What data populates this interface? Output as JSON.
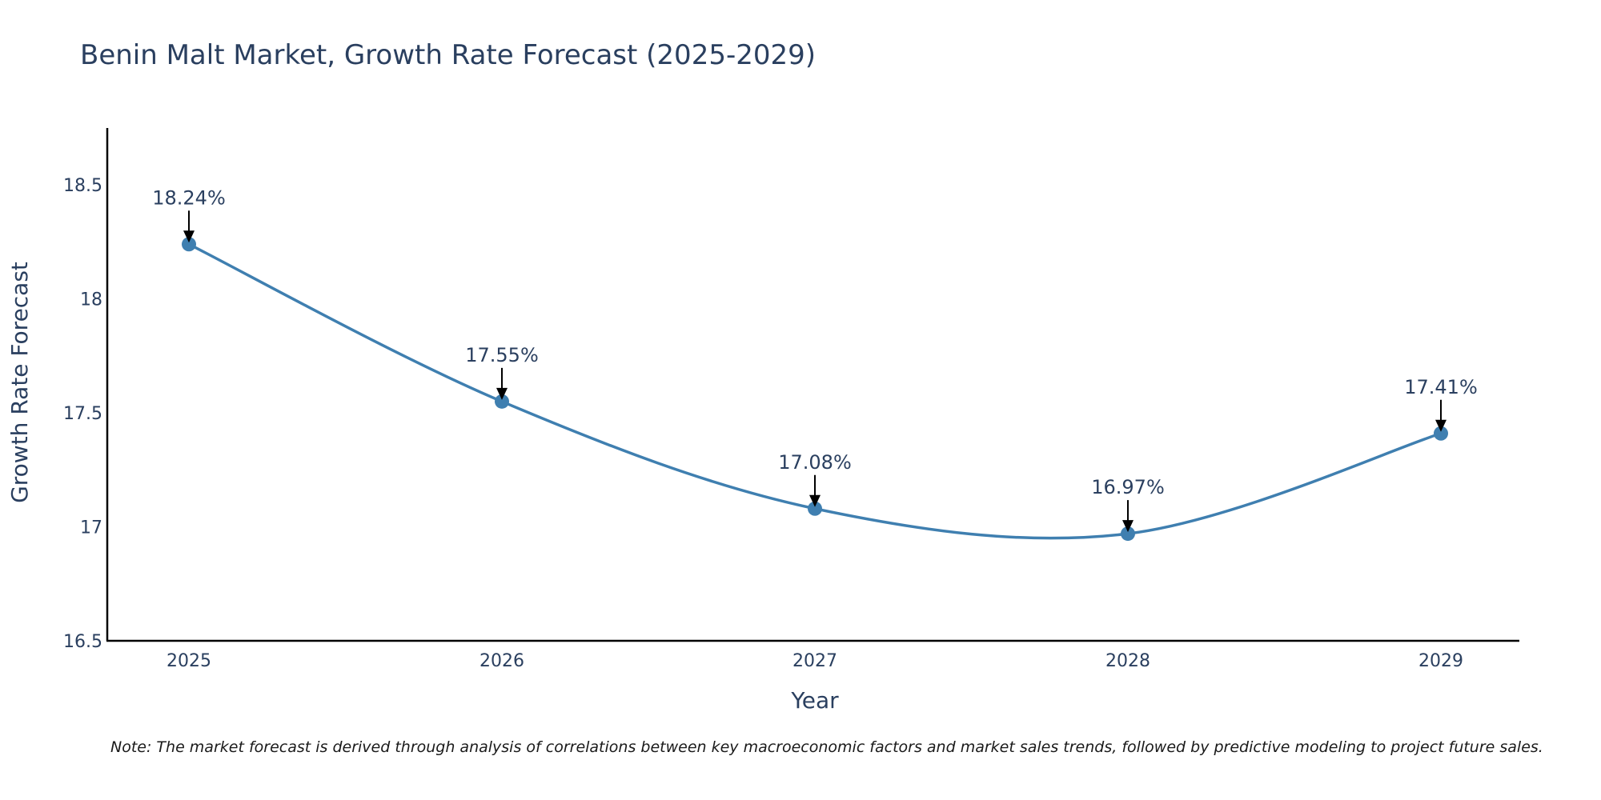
{
  "chart_data": {
    "type": "line",
    "title": "Benin Malt Market, Growth Rate Forecast (2025-2029)",
    "xlabel": "Year",
    "ylabel": "Growth Rate Forecast",
    "categories": [
      "2025",
      "2026",
      "2027",
      "2028",
      "2029"
    ],
    "series": [
      {
        "name": "Growth Rate Forecast",
        "values": [
          18.24,
          17.55,
          17.08,
          16.97,
          17.41
        ],
        "labels": [
          "18.24%",
          "17.55%",
          "17.08%",
          "16.97%",
          "17.41%"
        ],
        "color": "#3f7fb0"
      }
    ],
    "ylim": [
      16.5,
      18.75
    ],
    "yticks": [
      16.5,
      17,
      17.5,
      18,
      18.5
    ],
    "ytick_labels": [
      "16.5",
      "17",
      "17.5",
      "18",
      "18.5"
    ],
    "grid": false,
    "line_shape": "spline"
  },
  "note": "Note: The market forecast is derived through analysis of correlations between key macroeconomic factors and market sales trends, followed by predictive modeling to project future sales.",
  "colors": {
    "text": "#2a3f5f",
    "axis": "#000000",
    "arrow": "#000000",
    "line": "#3f7fb0"
  }
}
